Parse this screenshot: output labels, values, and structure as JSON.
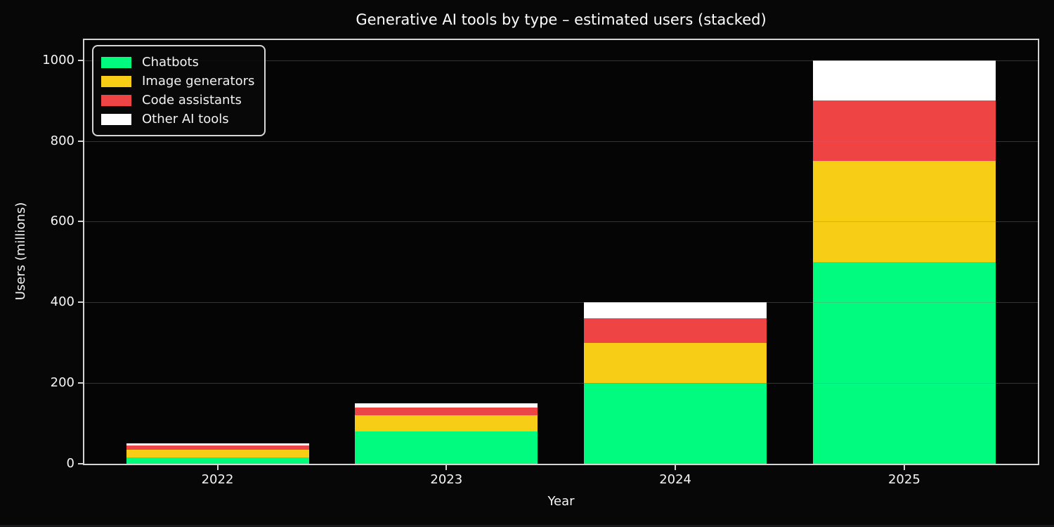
{
  "chart_data": {
    "type": "bar",
    "stacked": true,
    "title": "Generative AI tools by type – estimated users (stacked)",
    "xlabel": "Year",
    "ylabel": "Users (millions)",
    "categories": [
      "2022",
      "2023",
      "2024",
      "2025"
    ],
    "series": [
      {
        "name": "Chatbots",
        "color": "#00fb7f",
        "values": [
          15,
          80,
          200,
          500
        ]
      },
      {
        "name": "Image generators",
        "color": "#f8cd15",
        "values": [
          20,
          40,
          100,
          250
        ]
      },
      {
        "name": "Code assistants",
        "color": "#ee4444",
        "values": [
          10,
          20,
          60,
          150
        ]
      },
      {
        "name": "Other AI tools",
        "color": "#ffffff",
        "values": [
          5,
          10,
          40,
          100
        ]
      }
    ],
    "yticks": [
      0,
      200,
      400,
      600,
      800,
      1000
    ],
    "ylim": [
      0,
      1050
    ],
    "grid": "horizontal",
    "legend_position": "upper-left",
    "theme": {
      "background": "#070708",
      "axes_background": "#050506",
      "spine_color": "#d4d4d4",
      "text_color": "#ffffff"
    }
  }
}
